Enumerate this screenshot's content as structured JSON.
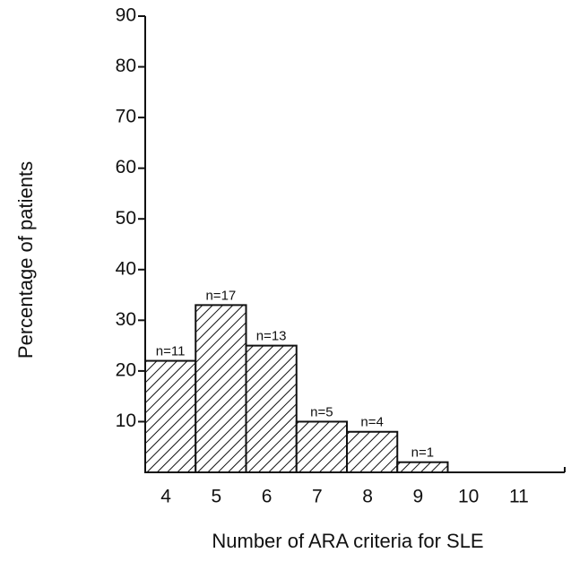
{
  "chart_data": {
    "type": "bar",
    "xlabel": "Number of ARA criteria for SLE",
    "ylabel": "Percentage of patients",
    "categories": [
      "4",
      "5",
      "6",
      "7",
      "8",
      "9",
      "10",
      "11"
    ],
    "values": [
      22,
      33,
      25,
      10,
      8,
      2,
      0,
      0
    ],
    "bar_labels": [
      "n=11",
      "n=17",
      "n=13",
      "n=5",
      "n=4",
      "n=1",
      null,
      null
    ],
    "color": "#111111",
    "ylim": [
      0,
      90
    ],
    "yticks": [
      10,
      20,
      30,
      40,
      50,
      60,
      70,
      80,
      90
    ],
    "grid": false
  }
}
